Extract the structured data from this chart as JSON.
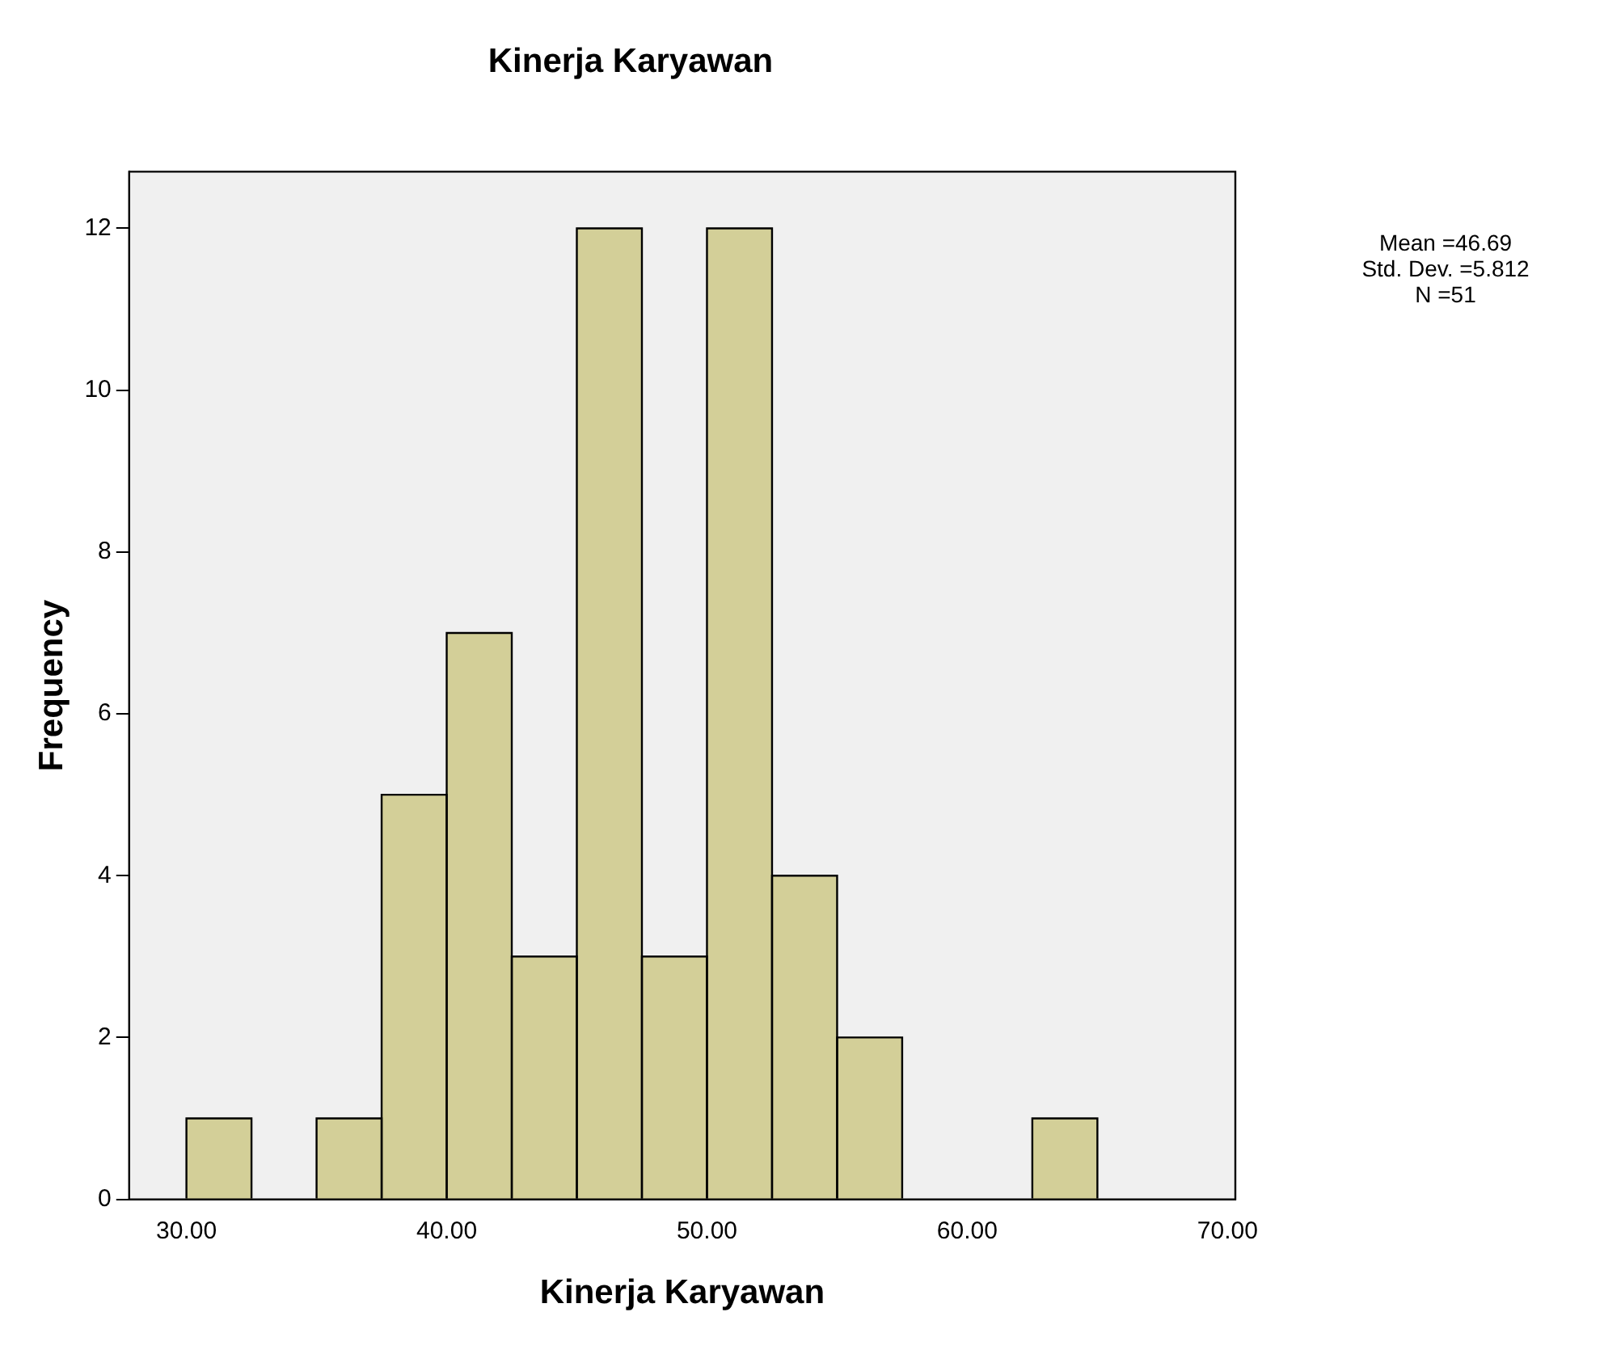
{
  "chart_data": {
    "type": "histogram",
    "title": "Kinerja Karyawan",
    "xlabel": "Kinerja Karyawan",
    "ylabel": "Frequency",
    "bins": [
      30,
      32.5,
      35,
      37.5,
      40,
      42.5,
      45,
      47.5,
      50,
      52.5,
      55,
      57.5,
      60,
      62.5,
      65
    ],
    "values": [
      1,
      0,
      1,
      5,
      7,
      3,
      12,
      3,
      12,
      4,
      2,
      0,
      0,
      1
    ],
    "color": "#d3cf98",
    "xlim": [
      27.8,
      70.3
    ],
    "xticks": [
      {
        "value": 30,
        "label": "30.00"
      },
      {
        "value": 40,
        "label": "40.00"
      },
      {
        "value": 50,
        "label": "50.00"
      },
      {
        "value": 60,
        "label": "60.00"
      },
      {
        "value": 70,
        "label": "70.00"
      }
    ],
    "ylim": [
      0,
      12.7
    ],
    "yticks": [
      0,
      2,
      4,
      6,
      8,
      10,
      12
    ],
    "grid": false,
    "legend": false,
    "annotations": [
      "Mean =46.69",
      "Std. Dev. =5.812",
      "N =51"
    ]
  }
}
